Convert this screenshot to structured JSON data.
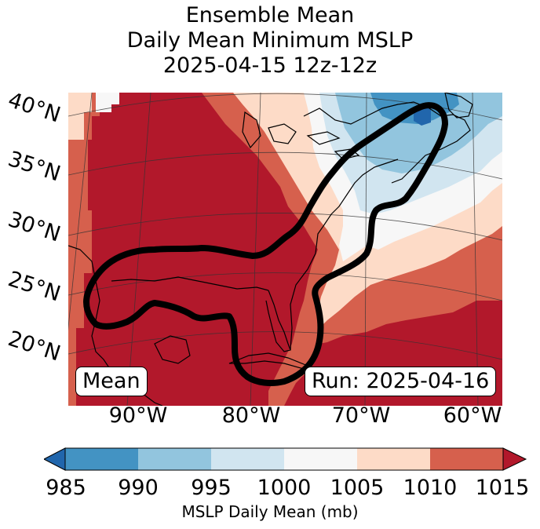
{
  "title": {
    "line1": "Ensemble Mean",
    "line2": "Daily Mean Minimum MSLP",
    "line3": "2025-04-15 12z-12z"
  },
  "map": {
    "lat_labels": [
      "40°N",
      "35°N",
      "30°N",
      "25°N",
      "20°N"
    ],
    "lon_labels": [
      "90°W",
      "80°W",
      "70°W",
      "60°W"
    ],
    "left_box": "Mean",
    "right_box": "Run: 2025-04-16",
    "colors": {
      "c985_990": "#4393c3",
      "c990_995": "#92c5de",
      "c995_1000": "#d1e5f0",
      "c1000_1005": "#f7f7f7",
      "c1005_1010": "#fddbc7",
      "c1010_1015": "#d6604d",
      "c1015_up": "#b2182b",
      "c_below": "#2166ac"
    }
  },
  "colorbar": {
    "ticks": [
      "985",
      "990",
      "995",
      "1000",
      "1005",
      "1010",
      "1015"
    ],
    "label": "MSLP Daily Mean (mb)",
    "colors": [
      "#4393c3",
      "#92c5de",
      "#d1e5f0",
      "#f7f7f7",
      "#fddbc7",
      "#d6604d"
    ],
    "under_color": "#2166ac",
    "over_color": "#b2182b"
  }
}
